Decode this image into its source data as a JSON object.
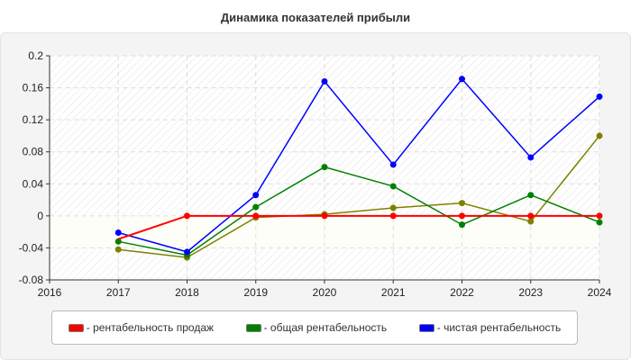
{
  "chart_data": {
    "type": "line",
    "title": "Динамика показателей прибыли",
    "x": [
      2017,
      2018,
      2019,
      2020,
      2021,
      2022,
      2023,
      2024
    ],
    "xlim": [
      2016,
      2024
    ],
    "ylim": [
      -0.08,
      0.2
    ],
    "xticks": [
      "2016",
      "2017",
      "2018",
      "2019",
      "2020",
      "2021",
      "2022",
      "2023",
      "2024"
    ],
    "yticks": [
      "-0.08",
      "-0.04",
      "0",
      "0.04",
      "0.08",
      "0.12",
      "0.16",
      "0.2"
    ],
    "grid": true,
    "legend_position": "bottom",
    "series": [
      {
        "name": "- рентабельность продаж",
        "color": "#ff0000",
        "values": [
          -0.029,
          0,
          0,
          0,
          0,
          0,
          0,
          0
        ]
      },
      {
        "name": "- общая рентабельность",
        "color": "#008000",
        "values": [
          -0.032,
          -0.049,
          0.011,
          0.061,
          0.037,
          -0.011,
          0.026,
          -0.008
        ]
      },
      {
        "name": "- чистая рентабельность",
        "color": "#0000ff",
        "values": [
          -0.021,
          -0.045,
          0.026,
          0.168,
          0.064,
          0.171,
          0.073,
          0.149
        ]
      },
      {
        "color": "#808000",
        "values": [
          -0.042,
          -0.052,
          -0.002,
          0.002,
          0.01,
          0.016,
          -0.007,
          0.1
        ]
      }
    ]
  }
}
